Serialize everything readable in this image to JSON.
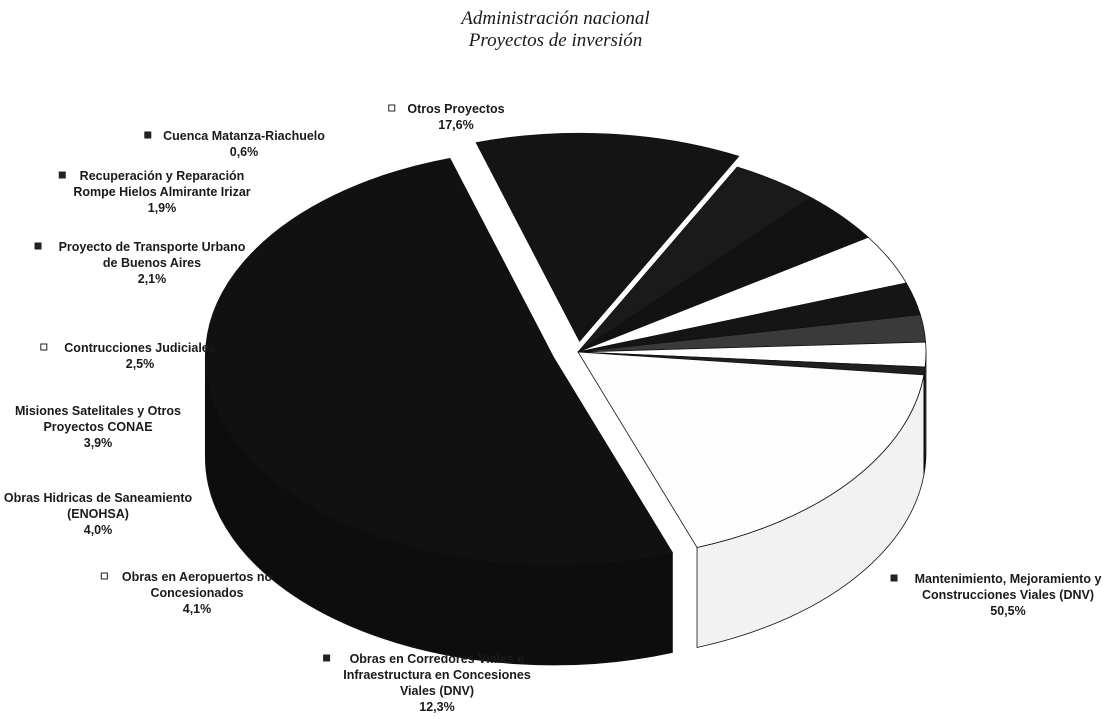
{
  "title_line1": "Administración nacional",
  "title_line2": "Proyectos de inversión",
  "chart_data": {
    "type": "pie",
    "title": "Administración nacional Proyectos de inversión",
    "slices": [
      {
        "name": [
          "Mantenimiento, Mejoramiento y",
          "Construcciones Viales (DNV)"
        ],
        "pct": "50,5%",
        "value": 50.5,
        "fill": "#111111",
        "legend_fill": "#222222"
      },
      {
        "name": [
          "Obras en Corredores Viales e",
          "Infraestructura en Concesiones",
          "Viales (DNV)"
        ],
        "pct": "12,3%",
        "value": 12.3,
        "fill": "#141414",
        "legend_fill": "#222222"
      },
      {
        "name": [
          "Obras en Aeropuertos no",
          "Concesionados"
        ],
        "pct": "4,1%",
        "value": 4.1,
        "fill": "#1a1a1a",
        "legend_fill": "#ffffff"
      },
      {
        "name": [
          "Obras Hidricas de Saneamiento",
          "(ENOHSA)"
        ],
        "pct": "4,0%",
        "value": 4.0,
        "fill": "#121212",
        "legend_fill": "#222222"
      },
      {
        "name": [
          "Misiones Satelitales y Otros",
          "Proyectos CONAE"
        ],
        "pct": "3,9%",
        "value": 3.9,
        "fill": "#ffffff",
        "legend_fill": "#222222"
      },
      {
        "name": [
          "Contrucciones Judiciales"
        ],
        "pct": "2,5%",
        "value": 2.5,
        "fill": "#151515",
        "legend_fill": "#ffffff"
      },
      {
        "name": [
          "Proyecto de Transporte Urbano",
          "de Buenos Aires"
        ],
        "pct": "2,1%",
        "value": 2.1,
        "fill": "#3a3a3a",
        "legend_fill": "#222222"
      },
      {
        "name": [
          "Recuperación y Reparación",
          "Rompe Hielos Almirante Irizar"
        ],
        "pct": "1,9%",
        "value": 1.9,
        "fill": "#ffffff",
        "legend_fill": "#222222"
      },
      {
        "name": [
          "Cuenca Matanza-Riachuelo"
        ],
        "pct": "0,6%",
        "value": 0.6,
        "fill": "#202020",
        "legend_fill": "#222222"
      },
      {
        "name": [
          "Otros Proyectos"
        ],
        "pct": "17,6%",
        "value": 17.6,
        "fill": "#fdfdfd",
        "legend_fill": "#ffffff"
      }
    ]
  }
}
